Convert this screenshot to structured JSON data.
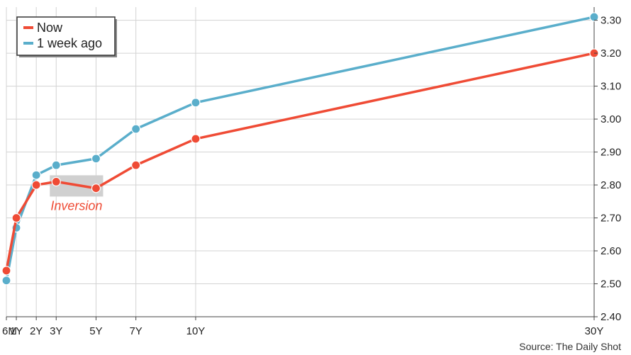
{
  "chart_data": {
    "type": "line",
    "categories": [
      "6M",
      "1Y",
      "2Y",
      "3Y",
      "5Y",
      "7Y",
      "10Y",
      "30Y"
    ],
    "x_positions": [
      0.5,
      1,
      2,
      3,
      5,
      7,
      10,
      30
    ],
    "series": [
      {
        "name": "Now",
        "color": "#ef4b35",
        "values": [
          2.54,
          2.7,
          2.8,
          2.81,
          2.79,
          2.86,
          2.94,
          3.2
        ]
      },
      {
        "name": "1 week ago",
        "color": "#5aaecb",
        "values": [
          2.51,
          2.67,
          2.83,
          2.86,
          2.88,
          2.97,
          3.05,
          3.31
        ]
      }
    ],
    "yticks": [
      "2.40",
      "2.50",
      "2.60",
      "2.70",
      "2.80",
      "2.90",
      "3.00",
      "3.10",
      "3.20",
      "3.30"
    ],
    "ylim": [
      2.4,
      3.34
    ],
    "axis_side": "right",
    "grid": true,
    "legend_position": "top-left",
    "annotation": {
      "text": "Inversion",
      "color": "#ef4b35",
      "highlight_range": [
        "3Y",
        "5Y"
      ]
    },
    "source": "Source: The Daily Shot"
  }
}
